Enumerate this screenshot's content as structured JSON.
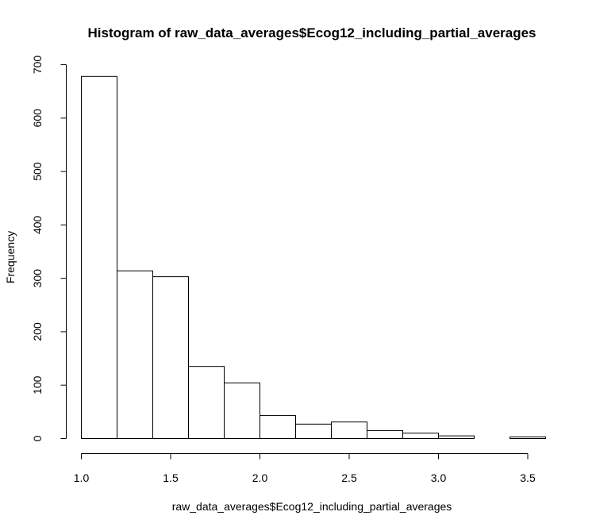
{
  "chart_data": {
    "type": "bar",
    "title": "Histogram of raw_data_averages$Ecog12_including_partial_averages",
    "xlabel": "raw_data_averages$Ecog12_including_partial_averages",
    "ylabel": "Frequency",
    "bins": [
      {
        "start": 1.0,
        "end": 1.2,
        "count": 678
      },
      {
        "start": 1.2,
        "end": 1.4,
        "count": 314
      },
      {
        "start": 1.4,
        "end": 1.6,
        "count": 303
      },
      {
        "start": 1.6,
        "end": 1.8,
        "count": 135
      },
      {
        "start": 1.8,
        "end": 2.0,
        "count": 104
      },
      {
        "start": 2.0,
        "end": 2.2,
        "count": 43
      },
      {
        "start": 2.2,
        "end": 2.4,
        "count": 27
      },
      {
        "start": 2.4,
        "end": 2.6,
        "count": 31
      },
      {
        "start": 2.6,
        "end": 2.8,
        "count": 15
      },
      {
        "start": 2.8,
        "end": 3.0,
        "count": 10
      },
      {
        "start": 3.0,
        "end": 3.2,
        "count": 5
      },
      {
        "start": 3.2,
        "end": 3.4,
        "count": 0
      },
      {
        "start": 3.4,
        "end": 3.6,
        "count": 3
      }
    ],
    "xlim": [
      1.0,
      3.6
    ],
    "ylim": [
      0,
      700
    ],
    "x_ticks": [
      1.0,
      1.5,
      2.0,
      2.5,
      3.0,
      3.5
    ],
    "x_tick_labels": [
      "1.0",
      "1.5",
      "2.0",
      "2.5",
      "3.0",
      "3.5"
    ],
    "y_ticks": [
      0,
      100,
      200,
      300,
      400,
      500,
      600,
      700
    ],
    "y_tick_labels": [
      "0",
      "100",
      "200",
      "300",
      "400",
      "500",
      "600",
      "700"
    ],
    "grid": false,
    "bar_fill": "#ffffff",
    "bar_stroke": "#000000"
  }
}
